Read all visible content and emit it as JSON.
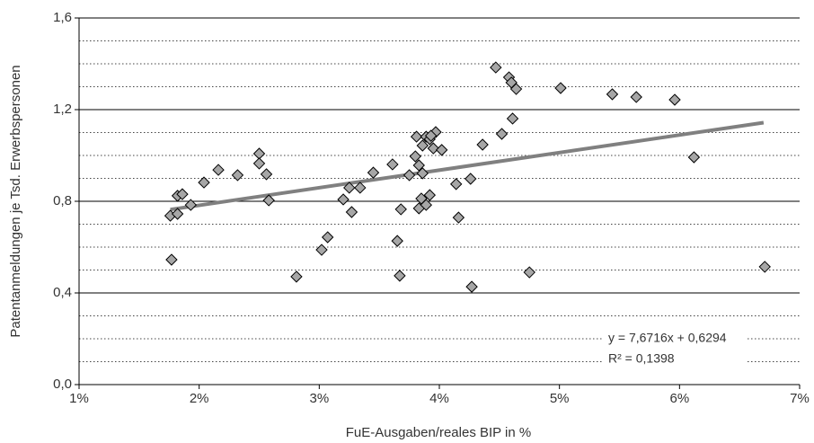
{
  "chart_data": {
    "type": "scatter",
    "x_label": "FuE-Ausgaben/reales BIP in %",
    "y_label": "Patentanmeldungen je Tsd. Erwerbspersonen",
    "x": [
      1.76,
      1.77,
      1.82,
      1.82,
      1.86,
      1.93,
      2.04,
      2.16,
      2.32,
      2.5,
      2.5,
      2.56,
      2.58,
      2.81,
      3.02,
      3.07,
      3.2,
      3.25,
      3.27,
      3.34,
      3.45,
      3.61,
      3.65,
      3.67,
      3.68,
      3.75,
      3.8,
      3.81,
      3.83,
      3.83,
      3.85,
      3.86,
      3.89,
      3.86,
      3.89,
      3.92,
      3.92,
      3.95,
      3.97,
      4.02,
      3.93,
      4.14,
      4.16,
      4.26,
      4.27,
      4.36,
      4.47,
      4.52,
      4.58,
      4.6,
      4.61,
      4.64,
      4.75,
      5.01,
      5.44,
      5.64,
      5.96,
      6.12,
      6.71
    ],
    "values": [
      0.737,
      0.545,
      0.745,
      0.824,
      0.831,
      0.784,
      0.882,
      0.937,
      0.914,
      1.008,
      0.965,
      0.918,
      0.804,
      0.471,
      0.588,
      0.643,
      0.808,
      0.859,
      0.753,
      0.859,
      0.925,
      0.961,
      0.627,
      0.475,
      0.765,
      0.914,
      0.996,
      1.082,
      0.957,
      0.769,
      0.812,
      1.043,
      1.082,
      0.922,
      0.784,
      0.827,
      1.071,
      1.031,
      1.102,
      1.024,
      1.086,
      0.875,
      0.729,
      0.898,
      0.427,
      1.047,
      1.384,
      1.094,
      1.341,
      1.318,
      1.161,
      1.29,
      0.49,
      1.294,
      1.267,
      1.255,
      1.243,
      0.992,
      0.514
    ],
    "color": "#a6a6a6",
    "trend": {
      "x": [
        1.76,
        6.7
      ],
      "y": [
        0.764,
        1.143
      ],
      "color": "#808080"
    },
    "annotations": [
      "y = 7,6716x + 0,6294",
      "R² = 0,1398"
    ],
    "xlim": [
      1,
      7
    ],
    "xticks": [
      {
        "value": 1,
        "label": "1%"
      },
      {
        "value": 2,
        "label": "2%"
      },
      {
        "value": 3,
        "label": "3%"
      },
      {
        "value": 4,
        "label": "4%"
      },
      {
        "value": 5,
        "label": "5%"
      },
      {
        "value": 6,
        "label": "6%"
      },
      {
        "value": 7,
        "label": "7%"
      }
    ],
    "ylim": [
      0,
      1.6
    ],
    "yticks": [
      {
        "value": 0,
        "label": "0,0"
      },
      {
        "value": 0.4,
        "label": "0,4"
      },
      {
        "value": 0.8,
        "label": "0,8"
      },
      {
        "value": 1.2,
        "label": "1,2"
      },
      {
        "value": 1.6,
        "label": "1,6"
      }
    ],
    "minor_grid": [
      0.1,
      0.2,
      0.3,
      0.5,
      0.6,
      0.7,
      0.9,
      1.0,
      1.1,
      1.3,
      1.4,
      1.5
    ],
    "grid": true
  }
}
